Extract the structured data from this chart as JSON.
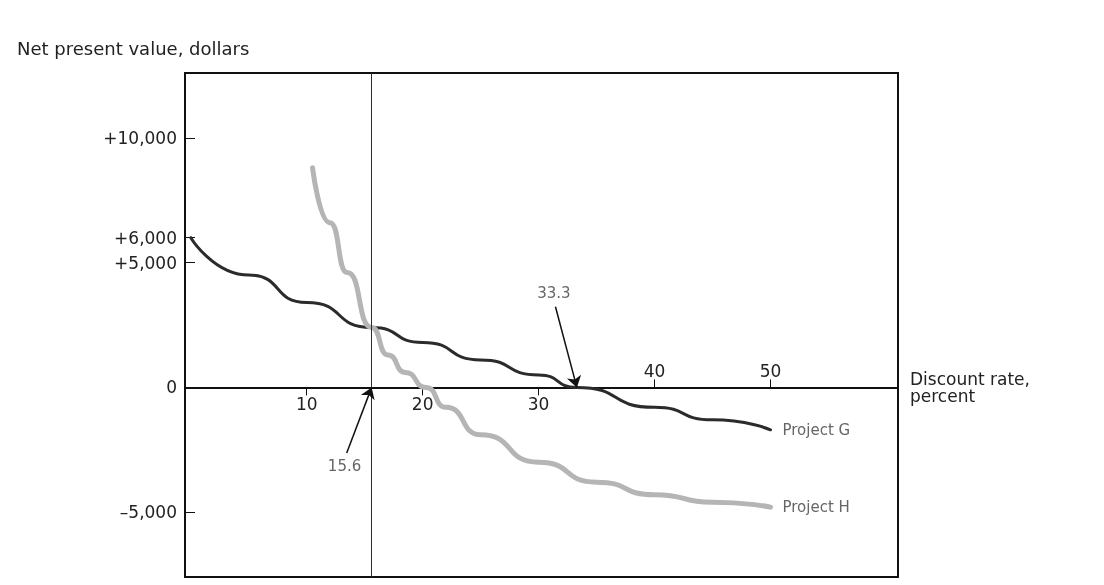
{
  "chart_data": {
    "type": "line",
    "xlabel": "Discount rate, percent",
    "ylabel": "Net present value, dollars",
    "xlim": [
      -0.5,
      61
    ],
    "xticks": [
      10,
      20,
      30
    ],
    "x2lim": [
      -0.5,
      61
    ],
    "x2ticks": [
      40,
      50
    ],
    "ylim": [
      -7600,
      12600
    ],
    "yticks": [
      {
        "value": 10000,
        "label": "+10,000"
      },
      {
        "value": 6000,
        "label": "+6,000"
      },
      {
        "value": 5000,
        "label": "+5,000"
      },
      0,
      {
        "value": -5000,
        "label": "–5,000"
      }
    ],
    "grid": false,
    "legend": false,
    "marker": "none",
    "line_style": "solid",
    "series": [
      {
        "name": "Project G",
        "color": "#2b2b2b",
        "x": [
          0,
          5,
          10,
          15.6,
          20,
          25,
          30,
          33.3,
          40,
          45,
          50
        ],
        "values": [
          6000,
          4500,
          3400,
          2400,
          1800,
          1100,
          500,
          0,
          -800,
          -1300,
          -1700
        ]
      },
      {
        "name": "Project H",
        "color": "#b5b5b5",
        "x": [
          10.5,
          12,
          13.5,
          15.6,
          17,
          18.5,
          20.3,
          22,
          25,
          30,
          35,
          40,
          45,
          50
        ],
        "values": [
          8800,
          6600,
          4600,
          2400,
          1300,
          600,
          0,
          -800,
          -1900,
          -3000,
          -3800,
          -4300,
          -4600,
          -4800
        ]
      }
    ],
    "ref_lines": [
      {
        "axis": "x",
        "value": 15.6,
        "color": "#2b2b2b"
      }
    ],
    "annotations": [
      {
        "text": "33.3",
        "x": 33.3,
        "y": 0
      },
      {
        "text": "15.6",
        "x": 15.6,
        "y": 0
      }
    ]
  }
}
